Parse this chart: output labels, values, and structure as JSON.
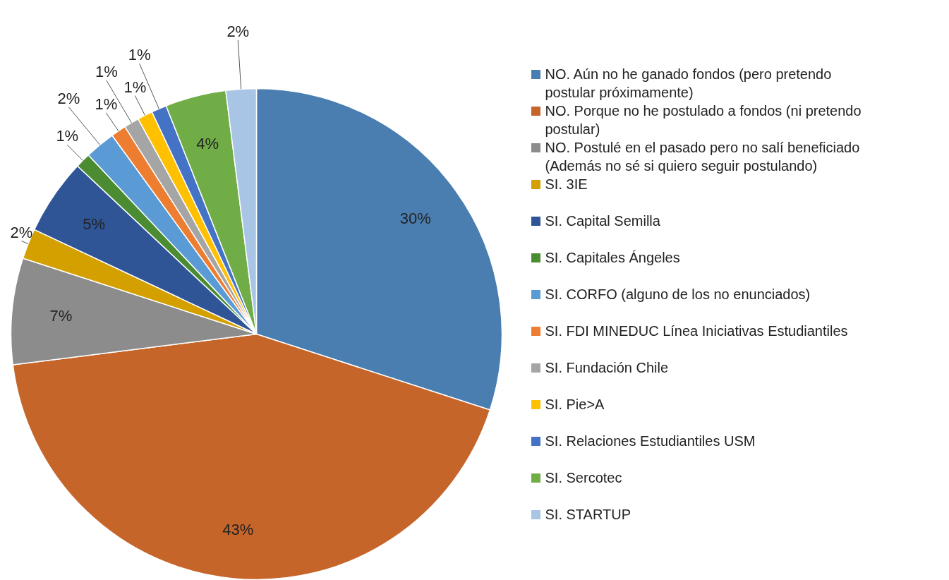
{
  "chart_data": {
    "type": "pie",
    "legend": "right",
    "categories": [
      "NO. Aún no he ganado fondos (pero pretendo postular próximamente)",
      "NO. Porque no he postulado a fondos (ni pretendo postular)",
      "NO. Postulé en el pasado pero no salí beneficiado (Además  no sé si quiero seguir postulando)",
      "SI. 3IE",
      "SI. Capital Semilla",
      "SI. Capitales Ángeles",
      "SI. CORFO (alguno de los no enunciados)",
      "SI. FDI MINEDUC Línea Iniciativas Estudiantiles",
      "SI. Fundación Chile",
      "SI. Pie>A",
      "SI. Relaciones Estudiantiles USM",
      "SI. Sercotec",
      "SI. STARTUP"
    ],
    "values": [
      30,
      43,
      7,
      2,
      5,
      1,
      2,
      1,
      1,
      1,
      1,
      4,
      2
    ],
    "value_labels": [
      "30%",
      "43%",
      "7%",
      "2%",
      "5%",
      "1%",
      "2%",
      "1%",
      "1%",
      "1%",
      "1%",
      "4%",
      "2%"
    ],
    "colors": [
      "#4a7eb0",
      "#c6652a",
      "#8c8c8c",
      "#d4a000",
      "#2f5597",
      "#4b8b32",
      "#5b9bd5",
      "#ed7d31",
      "#a5a5a5",
      "#ffc000",
      "#4472c4",
      "#70ad47",
      "#a9c5e6"
    ]
  }
}
